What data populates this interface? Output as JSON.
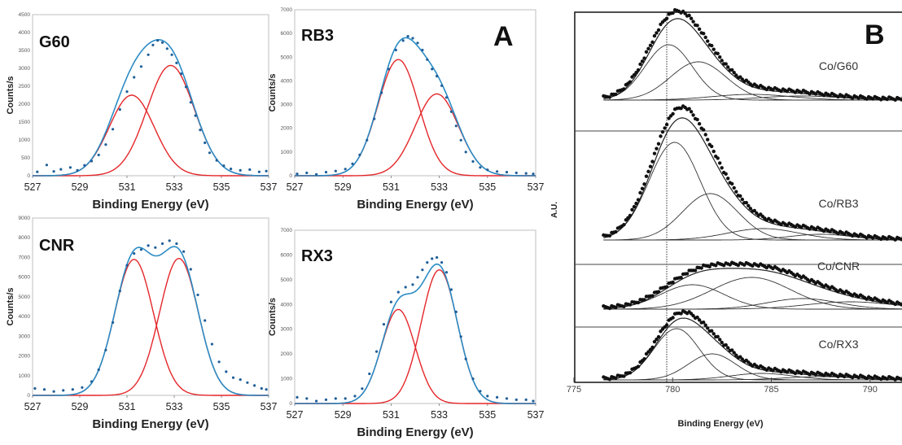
{
  "panel_a_label": "A",
  "panel_b_label": "B",
  "chart_data": [
    {
      "type": "scatter",
      "panel": "A",
      "title": "G60",
      "xlabel": "Binding Energy (eV)",
      "ylabel": "Counts/s",
      "xlim": [
        527,
        537
      ],
      "ylim": [
        0,
        4500
      ],
      "xticks": [
        527,
        529,
        531,
        533,
        535,
        537
      ],
      "yticks": [
        0,
        500,
        1000,
        1500,
        2000,
        2500,
        3000,
        3500,
        4000,
        4500
      ],
      "fit_peaks": [
        {
          "center": 531.2,
          "amplitude": 2250,
          "sigma": 0.95,
          "color": "#e4262a"
        },
        {
          "center": 532.85,
          "amplitude": 3080,
          "sigma": 1.0,
          "color": "#e4262a"
        }
      ],
      "envelope_color": "#2b8cc4",
      "points": [
        [
          527.2,
          110
        ],
        [
          527.6,
          300
        ],
        [
          527.9,
          120
        ],
        [
          528.2,
          180
        ],
        [
          528.6,
          230
        ],
        [
          528.9,
          150
        ],
        [
          529.2,
          290
        ],
        [
          529.5,
          410
        ],
        [
          529.8,
          580
        ],
        [
          530.1,
          870
        ],
        [
          530.4,
          1300
        ],
        [
          530.7,
          1850
        ],
        [
          531.0,
          2350
        ],
        [
          531.3,
          2750
        ],
        [
          531.6,
          3050
        ],
        [
          531.9,
          3380
        ],
        [
          532.1,
          3650
        ],
        [
          532.3,
          3780
        ],
        [
          532.5,
          3720
        ],
        [
          532.7,
          3550
        ],
        [
          532.9,
          3380
        ],
        [
          533.1,
          3150
        ],
        [
          533.3,
          2850
        ],
        [
          533.5,
          2480
        ],
        [
          533.7,
          2050
        ],
        [
          533.9,
          1680
        ],
        [
          534.1,
          1280
        ],
        [
          534.3,
          920
        ],
        [
          534.5,
          640
        ],
        [
          534.8,
          430
        ],
        [
          535.1,
          280
        ],
        [
          535.4,
          190
        ],
        [
          535.8,
          150
        ],
        [
          536.2,
          170
        ],
        [
          536.6,
          110
        ],
        [
          536.9,
          130
        ]
      ]
    },
    {
      "type": "scatter",
      "panel": "A",
      "title": "RB3",
      "xlabel": "Binding Energy (eV)",
      "ylabel": "Counts/s",
      "xlim": [
        527,
        537
      ],
      "ylim": [
        0,
        7000
      ],
      "xticks": [
        527,
        529,
        531,
        533,
        535,
        537
      ],
      "yticks": [
        0,
        1000,
        2000,
        3000,
        4000,
        5000,
        6000,
        7000
      ],
      "fit_peaks": [
        {
          "center": 531.3,
          "amplitude": 4900,
          "sigma": 0.85,
          "color": "#e4262a"
        },
        {
          "center": 532.9,
          "amplitude": 3450,
          "sigma": 0.9,
          "color": "#e4262a"
        }
      ],
      "envelope_color": "#2b8cc4",
      "points": [
        [
          527.1,
          80
        ],
        [
          527.5,
          120
        ],
        [
          527.9,
          60
        ],
        [
          528.3,
          150
        ],
        [
          528.7,
          200
        ],
        [
          529.1,
          280
        ],
        [
          529.4,
          500
        ],
        [
          529.7,
          880
        ],
        [
          530.0,
          1500
        ],
        [
          530.3,
          2400
        ],
        [
          530.6,
          3500
        ],
        [
          530.9,
          4500
        ],
        [
          531.2,
          5300
        ],
        [
          531.5,
          5700
        ],
        [
          531.7,
          5880
        ],
        [
          531.9,
          5800
        ],
        [
          532.1,
          5600
        ],
        [
          532.3,
          5300
        ],
        [
          532.5,
          4900
        ],
        [
          532.7,
          4500
        ],
        [
          532.9,
          4200
        ],
        [
          533.1,
          3800
        ],
        [
          533.3,
          3300
        ],
        [
          533.5,
          2700
        ],
        [
          533.7,
          2100
        ],
        [
          533.9,
          1500
        ],
        [
          534.1,
          1000
        ],
        [
          534.4,
          600
        ],
        [
          534.7,
          350
        ],
        [
          535.0,
          250
        ],
        [
          535.4,
          180
        ],
        [
          535.8,
          150
        ],
        [
          536.2,
          120
        ],
        [
          536.6,
          100
        ],
        [
          536.9,
          80
        ]
      ]
    },
    {
      "type": "scatter",
      "panel": "A",
      "title": "CNR",
      "xlabel": "Binding Energy (eV)",
      "ylabel": "Counts/s",
      "xlim": [
        527,
        537
      ],
      "ylim": [
        0,
        9000
      ],
      "xticks": [
        527,
        529,
        531,
        533,
        535,
        537
      ],
      "yticks": [
        0,
        1000,
        2000,
        3000,
        4000,
        5000,
        6000,
        7000,
        8000,
        9000
      ],
      "fit_peaks": [
        {
          "center": 531.3,
          "amplitude": 6900,
          "sigma": 0.82,
          "color": "#e4262a"
        },
        {
          "center": 533.2,
          "amplitude": 6950,
          "sigma": 0.82,
          "color": "#e4262a"
        }
      ],
      "envelope_color": "#2b8cc4",
      "points": [
        [
          527.1,
          350
        ],
        [
          527.5,
          300
        ],
        [
          527.9,
          200
        ],
        [
          528.3,
          250
        ],
        [
          528.7,
          300
        ],
        [
          529.1,
          400
        ],
        [
          529.5,
          700
        ],
        [
          529.8,
          1300
        ],
        [
          530.1,
          2300
        ],
        [
          530.4,
          3700
        ],
        [
          530.7,
          5300
        ],
        [
          531.0,
          6600
        ],
        [
          531.3,
          7200
        ],
        [
          531.6,
          7400
        ],
        [
          531.9,
          7600
        ],
        [
          532.2,
          7500
        ],
        [
          532.5,
          7700
        ],
        [
          532.8,
          7850
        ],
        [
          533.1,
          7700
        ],
        [
          533.4,
          7300
        ],
        [
          533.7,
          6400
        ],
        [
          534.0,
          5100
        ],
        [
          534.3,
          3800
        ],
        [
          534.6,
          2600
        ],
        [
          534.9,
          1700
        ],
        [
          535.2,
          1200
        ],
        [
          535.5,
          900
        ],
        [
          535.8,
          800
        ],
        [
          536.1,
          650
        ],
        [
          536.4,
          500
        ],
        [
          536.7,
          350
        ],
        [
          536.9,
          300
        ]
      ]
    },
    {
      "type": "scatter",
      "panel": "A",
      "title": "RX3",
      "xlabel": "Binding Energy (eV)",
      "ylabel": "Counts/s",
      "xlim": [
        527,
        537
      ],
      "ylim": [
        0,
        7000
      ],
      "xticks": [
        527,
        529,
        531,
        533,
        535,
        537
      ],
      "yticks": [
        0,
        1000,
        2000,
        3000,
        4000,
        5000,
        6000,
        7000
      ],
      "fit_peaks": [
        {
          "center": 531.3,
          "amplitude": 3800,
          "sigma": 0.7,
          "color": "#e4262a"
        },
        {
          "center": 533.0,
          "amplitude": 5400,
          "sigma": 0.75,
          "color": "#e4262a"
        }
      ],
      "envelope_color": "#2b8cc4",
      "points": [
        [
          527.1,
          250
        ],
        [
          527.5,
          200
        ],
        [
          527.9,
          100
        ],
        [
          528.3,
          150
        ],
        [
          528.7,
          200
        ],
        [
          529.1,
          200
        ],
        [
          529.5,
          300
        ],
        [
          529.8,
          600
        ],
        [
          530.1,
          1200
        ],
        [
          530.4,
          2100
        ],
        [
          530.7,
          3200
        ],
        [
          531.0,
          4100
        ],
        [
          531.3,
          4500
        ],
        [
          531.6,
          4700
        ],
        [
          531.9,
          4800
        ],
        [
          532.1,
          5100
        ],
        [
          532.3,
          5400
        ],
        [
          532.5,
          5700
        ],
        [
          532.7,
          5850
        ],
        [
          532.9,
          5900
        ],
        [
          533.1,
          5700
        ],
        [
          533.3,
          5300
        ],
        [
          533.5,
          4600
        ],
        [
          533.7,
          3700
        ],
        [
          533.9,
          2700
        ],
        [
          534.1,
          1800
        ],
        [
          534.4,
          1000
        ],
        [
          534.7,
          500
        ],
        [
          535.0,
          300
        ],
        [
          535.4,
          250
        ],
        [
          535.8,
          200
        ],
        [
          536.2,
          150
        ],
        [
          536.6,
          150
        ],
        [
          536.9,
          100
        ]
      ]
    },
    {
      "type": "line",
      "panel": "B",
      "title": "",
      "xlabel": "Binding Energy (eV)",
      "ylabel": "A.U.",
      "xlim": [
        775,
        792
      ],
      "xticks": [
        775,
        780,
        785,
        790
      ],
      "reference_line_x": 779.7,
      "series": [
        {
          "name": "Co/G60",
          "peaks": [
            {
              "center": 779.8,
              "amplitude": 68,
              "sigma": 1.2
            },
            {
              "center": 781.3,
              "amplitude": 47,
              "sigma": 1.4
            },
            {
              "center": 784.0,
              "amplitude": 7,
              "sigma": 2.0
            },
            {
              "center": 786.5,
              "amplitude": 5,
              "sigma": 2.0
            }
          ]
        },
        {
          "name": "Co/RB3",
          "peaks": [
            {
              "center": 780.1,
              "amplitude": 120,
              "sigma": 1.3
            },
            {
              "center": 781.9,
              "amplitude": 57,
              "sigma": 1.4
            },
            {
              "center": 784.6,
              "amplitude": 14,
              "sigma": 1.8
            },
            {
              "center": 787.5,
              "amplitude": 7,
              "sigma": 1.6
            }
          ]
        },
        {
          "name": "Co/CNR",
          "peaks": [
            {
              "center": 781.0,
              "amplitude": 30,
              "sigma": 1.6
            },
            {
              "center": 784.0,
              "amplitude": 39,
              "sigma": 2.0
            },
            {
              "center": 786.6,
              "amplitude": 13,
              "sigma": 1.8
            },
            {
              "center": 789.0,
              "amplitude": 9,
              "sigma": 2.2
            }
          ]
        },
        {
          "name": "Co/RX3",
          "peaks": [
            {
              "center": 780.2,
              "amplitude": 63,
              "sigma": 1.15
            },
            {
              "center": 782.0,
              "amplitude": 32,
              "sigma": 1.2
            },
            {
              "center": 784.5,
              "amplitude": 8,
              "sigma": 1.6
            },
            {
              "center": 787.5,
              "amplitude": 4,
              "sigma": 1.8
            }
          ]
        }
      ]
    }
  ]
}
